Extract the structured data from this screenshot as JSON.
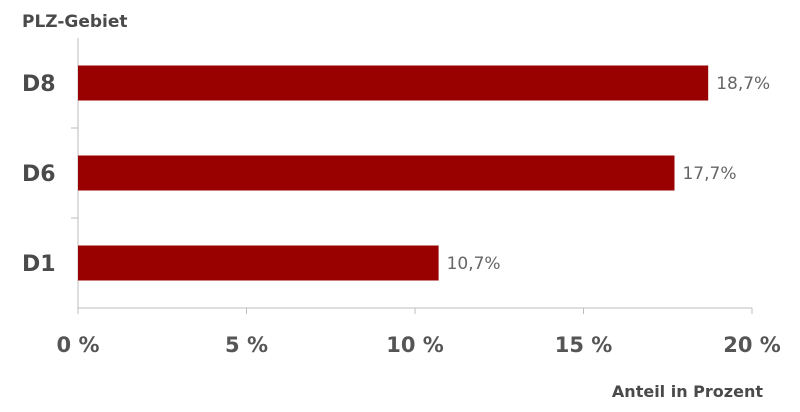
{
  "chart_data": {
    "type": "bar",
    "orientation": "horizontal",
    "ylabel": "PLZ-Gebiet",
    "xlabel": "Anteil in Prozent",
    "categories": [
      "D8",
      "D6",
      "D1"
    ],
    "values": [
      18.7,
      17.7,
      10.7
    ],
    "data_labels": [
      "18,7%",
      "17,7%",
      "10,7%"
    ],
    "xlim": [
      0,
      20
    ],
    "x_ticks": [
      0,
      5,
      10,
      15,
      20
    ],
    "x_tick_labels": [
      "0 %",
      "5 %",
      "10 %",
      "15 %",
      "20 %"
    ],
    "bar_color": "#990000",
    "grid": false,
    "legend": "none"
  }
}
